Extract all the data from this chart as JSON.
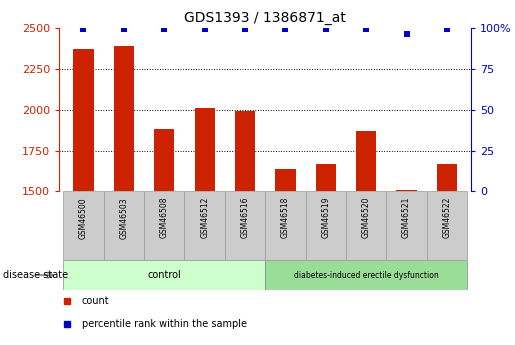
{
  "title": "GDS1393 / 1386871_at",
  "samples": [
    "GSM46500",
    "GSM46503",
    "GSM46508",
    "GSM46512",
    "GSM46516",
    "GSM46518",
    "GSM46519",
    "GSM46520",
    "GSM46521",
    "GSM46522"
  ],
  "counts": [
    2370,
    2390,
    1880,
    2010,
    1990,
    1640,
    1670,
    1870,
    1510,
    1670
  ],
  "percentiles": [
    99,
    99,
    99,
    99,
    99,
    99,
    99,
    99,
    96,
    99
  ],
  "ylim_left": [
    1500,
    2500
  ],
  "ylim_right": [
    0,
    100
  ],
  "yticks_left": [
    1500,
    1750,
    2000,
    2250,
    2500
  ],
  "yticks_right": [
    0,
    25,
    50,
    75,
    100
  ],
  "bar_color": "#cc2200",
  "dot_color": "#0000cc",
  "n_control": 5,
  "n_disease": 5,
  "control_label": "control",
  "disease_label": "diabetes-induced erectile dysfunction",
  "disease_state_label": "disease state",
  "legend_count_label": "count",
  "legend_percentile_label": "percentile rank within the sample",
  "control_bg": "#ccffcc",
  "disease_bg": "#99dd99",
  "sample_bg": "#cccccc",
  "left_axis_color": "#cc2200",
  "right_axis_color": "#0000cc",
  "title_fontsize": 10,
  "tick_fontsize": 8,
  "sample_fontsize": 5.5,
  "legend_fontsize": 7,
  "disease_fontsize": 7
}
